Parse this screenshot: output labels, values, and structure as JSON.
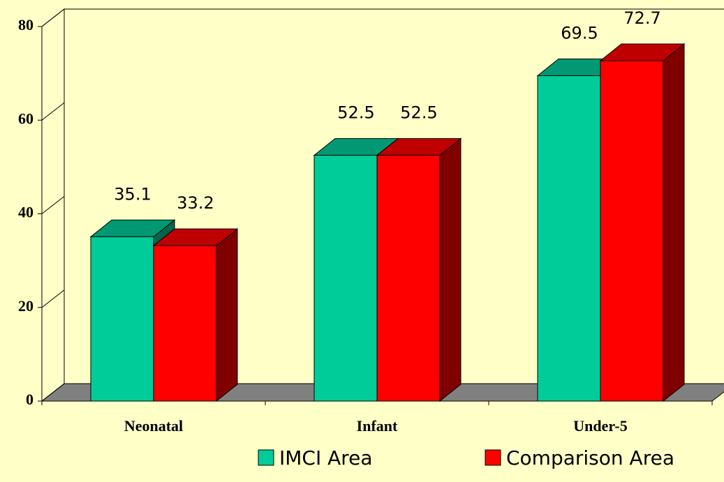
{
  "chart_data": {
    "type": "bar3d",
    "categories": [
      "Neonatal",
      "Infant",
      "Under-5"
    ],
    "series": [
      {
        "name": "IMCI Area",
        "color": "#00cc99",
        "values": [
          35.1,
          52.5,
          69.5
        ]
      },
      {
        "name": "Comparison Area",
        "color": "#ff0000",
        "values": [
          33.2,
          52.5,
          72.7
        ]
      }
    ],
    "ylim": [
      0,
      80
    ],
    "yticks": [
      0,
      20,
      40,
      60,
      80
    ]
  }
}
